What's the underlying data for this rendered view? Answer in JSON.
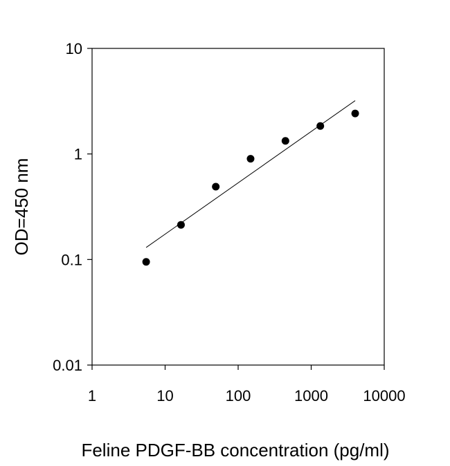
{
  "chart_data": {
    "type": "scatter",
    "title": "",
    "xlabel": "Feline PDGF-BB concentration (pg/ml)",
    "ylabel": "OD=450 nm",
    "x_scale": "log",
    "y_scale": "log",
    "xlim": [
      1,
      10000
    ],
    "ylim": [
      0.01,
      10
    ],
    "x_ticks": [
      1,
      10,
      100,
      1000,
      10000
    ],
    "x_tick_labels": [
      "1",
      "10",
      "100",
      "1000",
      "10000"
    ],
    "y_ticks": [
      0.01,
      0.1,
      1,
      10
    ],
    "y_tick_labels": [
      "0.01",
      "0.1",
      "1",
      "10"
    ],
    "grid": false,
    "legend": "none",
    "series": [
      {
        "x": [
          5.5,
          16.5,
          49.4,
          148,
          444,
          1333,
          4000
        ],
        "y": [
          0.095,
          0.213,
          0.49,
          0.9,
          1.33,
          1.84,
          2.42
        ],
        "marker": "circle",
        "color": "#000000"
      }
    ],
    "fit_line": {
      "x": [
        5.5,
        4000
      ],
      "y": [
        0.13,
        3.2
      ],
      "color": "#000000"
    }
  }
}
